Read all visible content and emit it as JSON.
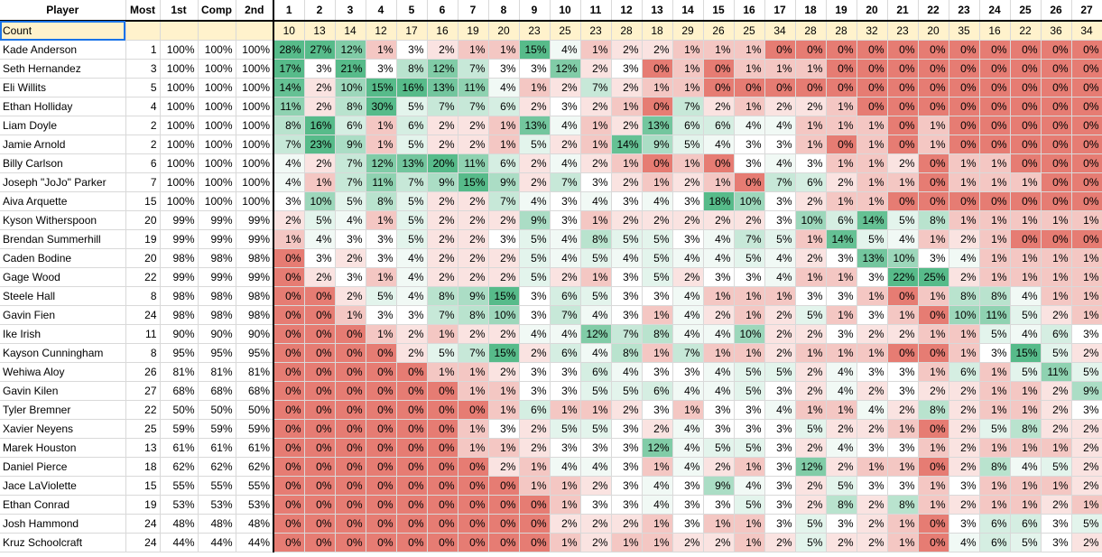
{
  "headers": {
    "player": "Player",
    "most": "Most",
    "first": "1st",
    "comp": "Comp",
    "second": "2nd",
    "ranks": [
      "1",
      "2",
      "3",
      "4",
      "5",
      "6",
      "7",
      "8",
      "9",
      "10",
      "11",
      "12",
      "13",
      "14",
      "15",
      "16",
      "17",
      "18",
      "19",
      "20",
      "21",
      "22",
      "23",
      "24",
      "25",
      "26",
      "27"
    ]
  },
  "count_row": {
    "label": "Count",
    "values": [
      "10",
      "13",
      "14",
      "12",
      "17",
      "16",
      "19",
      "20",
      "23",
      "25",
      "23",
      "28",
      "18",
      "29",
      "26",
      "25",
      "34",
      "28",
      "28",
      "32",
      "23",
      "20",
      "35",
      "16",
      "22",
      "36",
      "34"
    ]
  },
  "players": [
    {
      "name": "Kade Anderson",
      "most": "1",
      "first": "100%",
      "comp": "100%",
      "second": "100%",
      "ranks": [
        "28%",
        "27%",
        "12%",
        "1%",
        "3%",
        "2%",
        "1%",
        "1%",
        "15%",
        "4%",
        "1%",
        "2%",
        "2%",
        "1%",
        "1%",
        "1%",
        "0%",
        "0%",
        "0%",
        "0%",
        "0%",
        "0%",
        "0%",
        "0%",
        "0%",
        "0%",
        "0%"
      ]
    },
    {
      "name": "Seth Hernandez",
      "most": "3",
      "first": "100%",
      "comp": "100%",
      "second": "100%",
      "ranks": [
        "17%",
        "3%",
        "21%",
        "3%",
        "8%",
        "12%",
        "7%",
        "3%",
        "3%",
        "12%",
        "2%",
        "3%",
        "0%",
        "1%",
        "0%",
        "1%",
        "1%",
        "1%",
        "0%",
        "0%",
        "0%",
        "0%",
        "0%",
        "0%",
        "0%",
        "0%",
        "0%"
      ]
    },
    {
      "name": "Eli Willits",
      "most": "5",
      "first": "100%",
      "comp": "100%",
      "second": "100%",
      "ranks": [
        "14%",
        "2%",
        "10%",
        "15%",
        "16%",
        "13%",
        "11%",
        "4%",
        "1%",
        "2%",
        "7%",
        "2%",
        "1%",
        "1%",
        "0%",
        "0%",
        "0%",
        "0%",
        "0%",
        "0%",
        "0%",
        "0%",
        "0%",
        "0%",
        "0%",
        "0%",
        "0%"
      ]
    },
    {
      "name": "Ethan Holliday",
      "most": "4",
      "first": "100%",
      "comp": "100%",
      "second": "100%",
      "ranks": [
        "11%",
        "2%",
        "8%",
        "30%",
        "5%",
        "7%",
        "7%",
        "6%",
        "2%",
        "3%",
        "2%",
        "1%",
        "0%",
        "7%",
        "2%",
        "1%",
        "2%",
        "2%",
        "1%",
        "0%",
        "0%",
        "0%",
        "0%",
        "0%",
        "0%",
        "0%",
        "0%"
      ]
    },
    {
      "name": "Liam Doyle",
      "most": "2",
      "first": "100%",
      "comp": "100%",
      "second": "100%",
      "ranks": [
        "8%",
        "16%",
        "6%",
        "1%",
        "6%",
        "2%",
        "2%",
        "1%",
        "13%",
        "4%",
        "1%",
        "2%",
        "13%",
        "6%",
        "6%",
        "4%",
        "4%",
        "1%",
        "1%",
        "1%",
        "0%",
        "1%",
        "0%",
        "0%",
        "0%",
        "0%",
        "0%"
      ]
    },
    {
      "name": "Jamie Arnold",
      "most": "2",
      "first": "100%",
      "comp": "100%",
      "second": "100%",
      "ranks": [
        "7%",
        "23%",
        "9%",
        "1%",
        "5%",
        "2%",
        "2%",
        "1%",
        "5%",
        "2%",
        "1%",
        "14%",
        "9%",
        "5%",
        "4%",
        "3%",
        "3%",
        "1%",
        "0%",
        "1%",
        "0%",
        "1%",
        "0%",
        "0%",
        "0%",
        "0%",
        "0%"
      ]
    },
    {
      "name": "Billy Carlson",
      "most": "6",
      "first": "100%",
      "comp": "100%",
      "second": "100%",
      "ranks": [
        "4%",
        "2%",
        "7%",
        "12%",
        "13%",
        "20%",
        "11%",
        "6%",
        "2%",
        "4%",
        "2%",
        "1%",
        "0%",
        "1%",
        "0%",
        "3%",
        "4%",
        "3%",
        "1%",
        "1%",
        "2%",
        "0%",
        "1%",
        "1%",
        "0%",
        "0%",
        "0%"
      ]
    },
    {
      "name": "Joseph \"JoJo\" Parker",
      "most": "7",
      "first": "100%",
      "comp": "100%",
      "second": "100%",
      "ranks": [
        "4%",
        "1%",
        "7%",
        "11%",
        "7%",
        "9%",
        "15%",
        "9%",
        "2%",
        "7%",
        "3%",
        "2%",
        "1%",
        "2%",
        "1%",
        "0%",
        "7%",
        "6%",
        "2%",
        "1%",
        "1%",
        "0%",
        "1%",
        "1%",
        "1%",
        "0%",
        "0%"
      ]
    },
    {
      "name": "Aiva Arquette",
      "most": "15",
      "first": "100%",
      "comp": "100%",
      "second": "100%",
      "ranks": [
        "3%",
        "10%",
        "5%",
        "8%",
        "5%",
        "2%",
        "2%",
        "7%",
        "4%",
        "3%",
        "4%",
        "3%",
        "4%",
        "3%",
        "18%",
        "10%",
        "3%",
        "2%",
        "1%",
        "1%",
        "0%",
        "0%",
        "0%",
        "0%",
        "0%",
        "0%",
        "0%"
      ]
    },
    {
      "name": "Kyson Witherspoon",
      "most": "20",
      "first": "99%",
      "comp": "99%",
      "second": "99%",
      "ranks": [
        "2%",
        "5%",
        "4%",
        "1%",
        "5%",
        "2%",
        "2%",
        "2%",
        "9%",
        "3%",
        "1%",
        "2%",
        "2%",
        "2%",
        "2%",
        "2%",
        "3%",
        "10%",
        "6%",
        "14%",
        "5%",
        "8%",
        "1%",
        "1%",
        "1%",
        "1%",
        "1%"
      ]
    },
    {
      "name": "Brendan Summerhill",
      "most": "19",
      "first": "99%",
      "comp": "99%",
      "second": "99%",
      "ranks": [
        "1%",
        "4%",
        "3%",
        "3%",
        "5%",
        "2%",
        "2%",
        "3%",
        "5%",
        "4%",
        "8%",
        "5%",
        "5%",
        "3%",
        "4%",
        "7%",
        "5%",
        "1%",
        "14%",
        "5%",
        "4%",
        "1%",
        "2%",
        "1%",
        "0%",
        "0%",
        "0%"
      ]
    },
    {
      "name": "Caden Bodine",
      "most": "20",
      "first": "98%",
      "comp": "98%",
      "second": "98%",
      "ranks": [
        "0%",
        "3%",
        "2%",
        "3%",
        "4%",
        "2%",
        "2%",
        "2%",
        "5%",
        "4%",
        "5%",
        "4%",
        "5%",
        "4%",
        "4%",
        "5%",
        "4%",
        "2%",
        "3%",
        "13%",
        "10%",
        "3%",
        "4%",
        "1%",
        "1%",
        "1%",
        "1%"
      ]
    },
    {
      "name": "Gage Wood",
      "most": "22",
      "first": "99%",
      "comp": "99%",
      "second": "99%",
      "ranks": [
        "0%",
        "2%",
        "3%",
        "1%",
        "4%",
        "2%",
        "2%",
        "2%",
        "5%",
        "2%",
        "1%",
        "3%",
        "5%",
        "2%",
        "3%",
        "3%",
        "4%",
        "1%",
        "1%",
        "3%",
        "22%",
        "25%",
        "2%",
        "1%",
        "1%",
        "1%",
        "1%"
      ]
    },
    {
      "name": "Steele Hall",
      "most": "8",
      "first": "98%",
      "comp": "98%",
      "second": "98%",
      "ranks": [
        "0%",
        "0%",
        "2%",
        "5%",
        "4%",
        "8%",
        "9%",
        "15%",
        "3%",
        "6%",
        "5%",
        "3%",
        "3%",
        "4%",
        "1%",
        "1%",
        "1%",
        "3%",
        "3%",
        "1%",
        "0%",
        "1%",
        "8%",
        "8%",
        "4%",
        "1%",
        "1%"
      ]
    },
    {
      "name": "Gavin Fien",
      "most": "24",
      "first": "98%",
      "comp": "98%",
      "second": "98%",
      "ranks": [
        "0%",
        "0%",
        "1%",
        "3%",
        "3%",
        "7%",
        "8%",
        "10%",
        "3%",
        "7%",
        "4%",
        "3%",
        "1%",
        "4%",
        "2%",
        "1%",
        "2%",
        "5%",
        "1%",
        "3%",
        "1%",
        "0%",
        "10%",
        "11%",
        "5%",
        "2%",
        "1%"
      ]
    },
    {
      "name": "Ike Irish",
      "most": "11",
      "first": "90%",
      "comp": "90%",
      "second": "90%",
      "ranks": [
        "0%",
        "0%",
        "0%",
        "1%",
        "2%",
        "1%",
        "2%",
        "2%",
        "4%",
        "4%",
        "12%",
        "7%",
        "8%",
        "4%",
        "4%",
        "10%",
        "2%",
        "2%",
        "3%",
        "2%",
        "2%",
        "1%",
        "1%",
        "5%",
        "4%",
        "6%",
        "3%"
      ]
    },
    {
      "name": "Kayson Cunningham",
      "most": "8",
      "first": "95%",
      "comp": "95%",
      "second": "95%",
      "ranks": [
        "0%",
        "0%",
        "0%",
        "0%",
        "2%",
        "5%",
        "7%",
        "15%",
        "2%",
        "6%",
        "4%",
        "8%",
        "1%",
        "7%",
        "1%",
        "1%",
        "2%",
        "1%",
        "1%",
        "1%",
        "0%",
        "0%",
        "1%",
        "3%",
        "15%",
        "5%",
        "2%"
      ]
    },
    {
      "name": "Wehiwa Aloy",
      "most": "26",
      "first": "81%",
      "comp": "81%",
      "second": "81%",
      "ranks": [
        "0%",
        "0%",
        "0%",
        "0%",
        "0%",
        "1%",
        "1%",
        "2%",
        "3%",
        "3%",
        "6%",
        "4%",
        "3%",
        "3%",
        "4%",
        "5%",
        "5%",
        "2%",
        "4%",
        "3%",
        "3%",
        "1%",
        "6%",
        "1%",
        "5%",
        "11%",
        "5%"
      ]
    },
    {
      "name": "Gavin Kilen",
      "most": "27",
      "first": "68%",
      "comp": "68%",
      "second": "68%",
      "ranks": [
        "0%",
        "0%",
        "0%",
        "0%",
        "0%",
        "0%",
        "1%",
        "1%",
        "3%",
        "3%",
        "5%",
        "5%",
        "6%",
        "4%",
        "4%",
        "5%",
        "3%",
        "2%",
        "4%",
        "2%",
        "3%",
        "2%",
        "2%",
        "1%",
        "1%",
        "2%",
        "9%"
      ]
    },
    {
      "name": "Tyler Bremner",
      "most": "22",
      "first": "50%",
      "comp": "50%",
      "second": "50%",
      "ranks": [
        "0%",
        "0%",
        "0%",
        "0%",
        "0%",
        "0%",
        "0%",
        "1%",
        "6%",
        "1%",
        "1%",
        "2%",
        "3%",
        "1%",
        "3%",
        "3%",
        "4%",
        "1%",
        "1%",
        "4%",
        "2%",
        "8%",
        "2%",
        "1%",
        "1%",
        "2%",
        "3%"
      ]
    },
    {
      "name": "Xavier Neyens",
      "most": "25",
      "first": "59%",
      "comp": "59%",
      "second": "59%",
      "ranks": [
        "0%",
        "0%",
        "0%",
        "0%",
        "0%",
        "0%",
        "1%",
        "3%",
        "2%",
        "5%",
        "5%",
        "3%",
        "2%",
        "4%",
        "3%",
        "3%",
        "3%",
        "5%",
        "2%",
        "2%",
        "1%",
        "0%",
        "2%",
        "5%",
        "8%",
        "2%",
        "2%"
      ]
    },
    {
      "name": "Marek Houston",
      "most": "13",
      "first": "61%",
      "comp": "61%",
      "second": "61%",
      "ranks": [
        "0%",
        "0%",
        "0%",
        "0%",
        "0%",
        "0%",
        "1%",
        "1%",
        "2%",
        "3%",
        "3%",
        "3%",
        "12%",
        "4%",
        "5%",
        "5%",
        "3%",
        "2%",
        "4%",
        "3%",
        "3%",
        "1%",
        "2%",
        "1%",
        "1%",
        "1%",
        "2%"
      ]
    },
    {
      "name": "Daniel Pierce",
      "most": "18",
      "first": "62%",
      "comp": "62%",
      "second": "62%",
      "ranks": [
        "0%",
        "0%",
        "0%",
        "0%",
        "0%",
        "0%",
        "0%",
        "2%",
        "1%",
        "4%",
        "4%",
        "3%",
        "1%",
        "4%",
        "2%",
        "1%",
        "3%",
        "12%",
        "2%",
        "1%",
        "1%",
        "0%",
        "2%",
        "8%",
        "4%",
        "5%",
        "2%"
      ]
    },
    {
      "name": "Jace LaViolette",
      "most": "15",
      "first": "55%",
      "comp": "55%",
      "second": "55%",
      "ranks": [
        "0%",
        "0%",
        "0%",
        "0%",
        "0%",
        "0%",
        "0%",
        "0%",
        "1%",
        "1%",
        "2%",
        "3%",
        "4%",
        "3%",
        "9%",
        "4%",
        "3%",
        "2%",
        "5%",
        "3%",
        "3%",
        "1%",
        "3%",
        "1%",
        "1%",
        "1%",
        "2%"
      ]
    },
    {
      "name": "Ethan Conrad",
      "most": "19",
      "first": "53%",
      "comp": "53%",
      "second": "53%",
      "ranks": [
        "0%",
        "0%",
        "0%",
        "0%",
        "0%",
        "0%",
        "0%",
        "0%",
        "0%",
        "1%",
        "3%",
        "3%",
        "4%",
        "3%",
        "3%",
        "5%",
        "3%",
        "2%",
        "8%",
        "2%",
        "8%",
        "1%",
        "2%",
        "1%",
        "1%",
        "2%",
        "1%"
      ]
    },
    {
      "name": "Josh Hammond",
      "most": "24",
      "first": "48%",
      "comp": "48%",
      "second": "48%",
      "ranks": [
        "0%",
        "0%",
        "0%",
        "0%",
        "0%",
        "0%",
        "0%",
        "0%",
        "0%",
        "2%",
        "2%",
        "2%",
        "1%",
        "3%",
        "1%",
        "1%",
        "3%",
        "5%",
        "3%",
        "2%",
        "1%",
        "0%",
        "3%",
        "6%",
        "6%",
        "3%",
        "5%"
      ]
    },
    {
      "name": "Kruz Schoolcraft",
      "most": "24",
      "first": "44%",
      "comp": "44%",
      "second": "44%",
      "ranks": [
        "0%",
        "0%",
        "0%",
        "0%",
        "0%",
        "0%",
        "0%",
        "0%",
        "0%",
        "1%",
        "2%",
        "1%",
        "1%",
        "2%",
        "2%",
        "1%",
        "2%",
        "5%",
        "2%",
        "2%",
        "1%",
        "0%",
        "4%",
        "6%",
        "5%",
        "3%",
        "2%"
      ]
    }
  ],
  "colors": {
    "zero": "#e67c73",
    "low": "#f4c7c3",
    "mid": "#ffffff",
    "high": "#57bb8a",
    "count_bg": "#fff2cc",
    "selection": "#1a73e8"
  }
}
